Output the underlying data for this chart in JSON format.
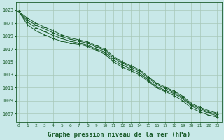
{
  "background_color": "#c8e8e8",
  "plot_bg_color": "#c8e8e8",
  "grid_color": "#a8c8b8",
  "line_color": "#1a5c2a",
  "xlabel": "Graphe pression niveau de la mer (hPa)",
  "xlabel_fontsize": 6.5,
  "yticks": [
    1007,
    1009,
    1011,
    1013,
    1015,
    1017,
    1019,
    1021,
    1023
  ],
  "xticks": [
    0,
    1,
    2,
    3,
    4,
    5,
    6,
    7,
    8,
    9,
    10,
    11,
    12,
    13,
    14,
    15,
    16,
    17,
    18,
    19,
    20,
    21,
    22,
    23
  ],
  "ylim": [
    1005.8,
    1024.2
  ],
  "xlim": [
    -0.3,
    23.5
  ],
  "series": [
    [
      1022.8,
      1021.5,
      1020.7,
      1020.1,
      1019.5,
      1018.9,
      1018.5,
      1018.2,
      1017.9,
      1017.3,
      1016.8,
      1015.6,
      1014.8,
      1014.2,
      1013.6,
      1012.5,
      1011.5,
      1010.9,
      1010.3,
      1009.5,
      1008.4,
      1007.8,
      1007.3,
      1006.9
    ],
    [
      1022.8,
      1020.8,
      1019.8,
      1019.2,
      1018.6,
      1018.2,
      1017.9,
      1017.7,
      1017.4,
      1016.8,
      1016.2,
      1015.0,
      1014.2,
      1013.6,
      1013.0,
      1012.0,
      1011.0,
      1010.4,
      1009.8,
      1009.0,
      1007.9,
      1007.3,
      1006.8,
      1006.5
    ],
    [
      1022.8,
      1021.2,
      1020.3,
      1019.7,
      1019.1,
      1018.6,
      1018.2,
      1017.9,
      1017.6,
      1017.0,
      1016.5,
      1015.3,
      1014.5,
      1013.9,
      1013.3,
      1012.2,
      1011.2,
      1010.6,
      1010.1,
      1009.3,
      1008.2,
      1007.6,
      1007.1,
      1006.7
    ],
    [
      1022.8,
      1021.8,
      1021.0,
      1020.4,
      1019.8,
      1019.2,
      1018.7,
      1018.4,
      1018.1,
      1017.5,
      1017.0,
      1015.8,
      1015.0,
      1014.4,
      1013.8,
      1012.7,
      1011.7,
      1011.1,
      1010.5,
      1009.7,
      1008.6,
      1008.0,
      1007.5,
      1007.1
    ]
  ]
}
